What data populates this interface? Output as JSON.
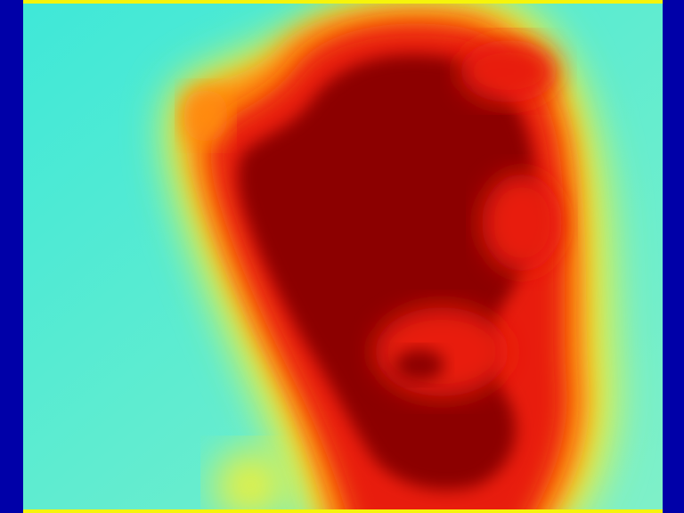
{
  "image": {
    "kind": "thermal-heatmap",
    "colormap": "jet",
    "colors": {
      "border_bar": "#0000a8",
      "background": "#3fe8d8",
      "background_light": "#7ff0c8",
      "edge": "#f6f40a",
      "warm_yellow": "#e8f040",
      "orange": "#ff8a10",
      "red": "#e81a0a",
      "hot": "#8c0000"
    }
  }
}
